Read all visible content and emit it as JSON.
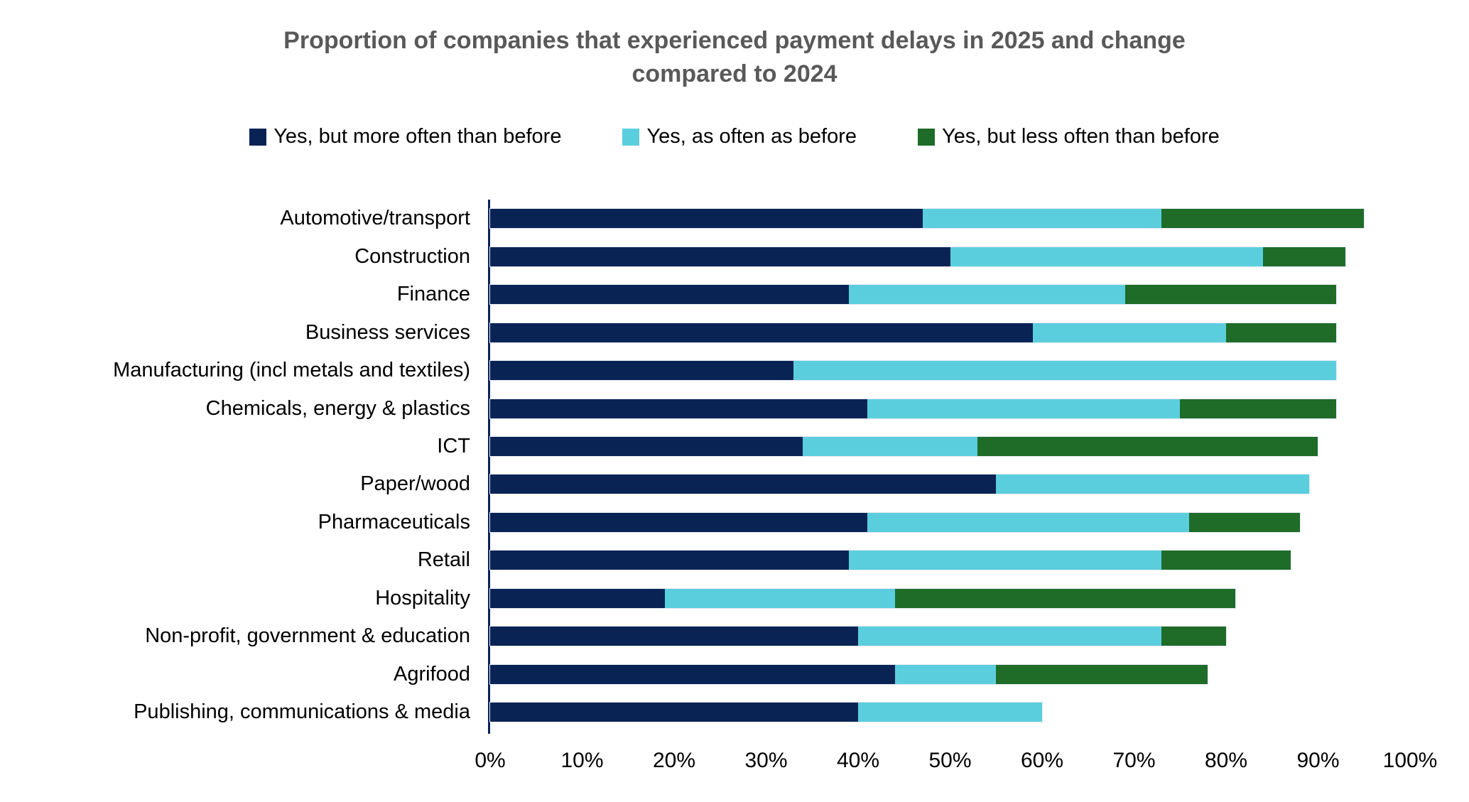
{
  "title": {
    "line1": "Proportion of companies that experienced payment delays in 2025 and change",
    "line2": "compared to 2024"
  },
  "colors": {
    "more_often": "#0a2355",
    "as_often": "#5bcede",
    "less_often": "#1e6c28",
    "title_text": "#595959",
    "axis_line": "#0a2355"
  },
  "legend": [
    {
      "label": "Yes, but more often than before",
      "color_key": "more_often"
    },
    {
      "label": "Yes, as often as before",
      "color_key": "as_often"
    },
    {
      "label": "Yes, but less often than before",
      "color_key": "less_often"
    }
  ],
  "chart_data": {
    "type": "bar",
    "orientation": "horizontal",
    "stacked": true,
    "unit": "%",
    "title": "Proportion of companies that experienced payment delays in 2025 and change compared to 2024",
    "legend_position": "top",
    "grid": false,
    "x_axis": {
      "min": 0,
      "max": 100,
      "ticks": [
        "0%",
        "10%",
        "20%",
        "30%",
        "40%",
        "50%",
        "60%",
        "70%",
        "80%",
        "90%",
        "100%"
      ]
    },
    "categories": [
      "Automotive/transport",
      "Construction",
      "Finance",
      "Business services",
      "Manufacturing (incl metals and textiles)",
      "Chemicals, energy & plastics",
      "ICT",
      "Paper/wood",
      "Pharmaceuticals",
      "Retail",
      "Hospitality",
      "Non-profit, government & education",
      "Agrifood",
      "Publishing, communications & media"
    ],
    "series": [
      {
        "name": "Yes, but more often than before",
        "color": "#0a2355",
        "values": [
          47,
          50,
          39,
          59,
          33,
          41,
          34,
          55,
          41,
          39,
          19,
          40,
          44,
          40
        ]
      },
      {
        "name": "Yes, as often as before",
        "color": "#5bcede",
        "values": [
          26,
          34,
          30,
          21,
          59,
          34,
          19,
          34,
          35,
          34,
          25,
          33,
          11,
          20
        ]
      },
      {
        "name": "Yes, but less often than before",
        "color": "#1e6c28",
        "values": [
          22,
          9,
          23,
          12,
          0,
          17,
          37,
          0,
          12,
          14,
          37,
          7,
          23,
          0
        ]
      }
    ]
  }
}
